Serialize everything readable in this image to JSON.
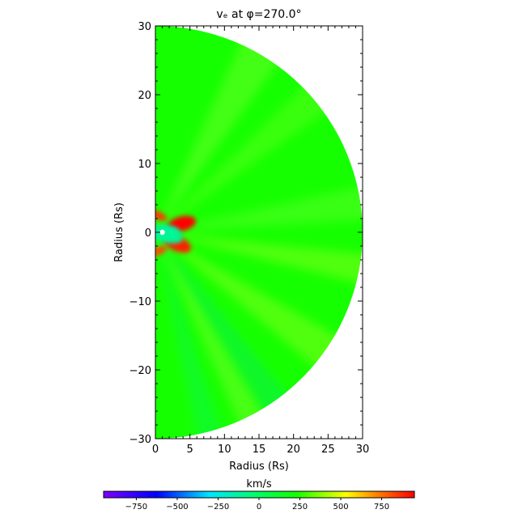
{
  "chart_data": {
    "type": "heatmap",
    "title": "vₑ at φ=270.0°",
    "xlabel": "Radius (Rs)",
    "ylabel": "Radius (Rs)",
    "xlim": [
      0,
      30
    ],
    "ylim": [
      -30,
      30
    ],
    "x_ticks": [
      0,
      5,
      10,
      15,
      20,
      25,
      30
    ],
    "y_ticks": [
      -30,
      -20,
      -10,
      0,
      10,
      20,
      30
    ],
    "x_tick_labels": [
      "0",
      "5",
      "10",
      "15",
      "20",
      "25",
      "30"
    ],
    "y_tick_labels": [
      "−30",
      "−20",
      "−10",
      "0",
      "10",
      "20",
      "30"
    ],
    "domain_shape": "half-disk of radius 30 Rs centered at origin, x ≥ 0",
    "background_value": 230,
    "features": [
      {
        "description": "strong positive lobe north of equator",
        "angle_deg": 18,
        "radius_Rs": 4.0,
        "value": 950
      },
      {
        "description": "positive lobe south of equator",
        "angle_deg": -28,
        "radius_Rs": 3.6,
        "value": 900
      },
      {
        "description": "positive streak along upper axis",
        "angle_deg": 84,
        "radius_Rs": 2.5,
        "value": 850
      },
      {
        "description": "positive streak along lower axis",
        "angle_deg": -84,
        "radius_Rs": 2.8,
        "value": 820
      },
      {
        "description": "slow region near equator (small radius)",
        "angle_deg": 0,
        "radius_Rs": 1.4,
        "value": -150
      },
      {
        "description": "slow streak below equator",
        "angle_deg": -15,
        "radius_Rs": 2.0,
        "value": -100
      }
    ],
    "colorbar": {
      "label": "km/s",
      "min": -950,
      "max": 950,
      "ticks": [
        -750,
        -500,
        -250,
        0,
        250,
        500,
        750
      ],
      "tick_labels": [
        "−750",
        "−500",
        "−250",
        "0",
        "250",
        "500",
        "750"
      ],
      "colormap": "rainbow (violet → blue → cyan → green → yellow → orange → red)"
    }
  },
  "colors": {
    "violet": "#7f00ff",
    "blue": "#0000ff",
    "cyan": "#00e5ff",
    "green": "#14ff00",
    "yellow": "#ffff00",
    "orange": "#ff8000",
    "red": "#ff0000"
  }
}
